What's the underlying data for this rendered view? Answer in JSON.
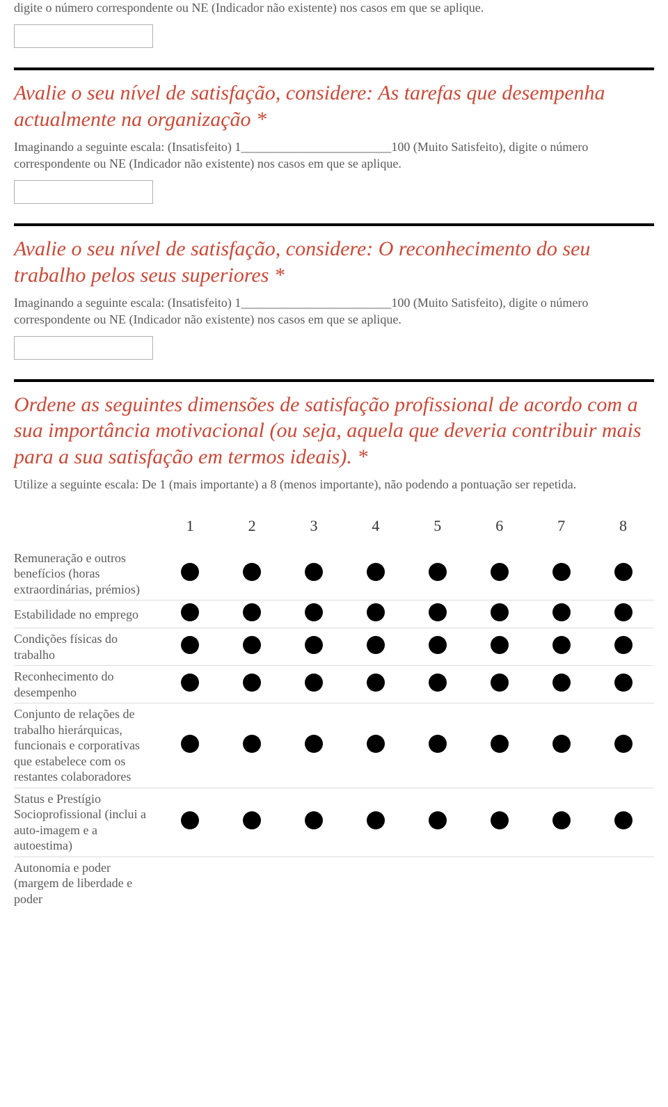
{
  "colors": {
    "title": "#c94a38",
    "helper": "#5a5a5a",
    "divider": "#000000",
    "row_border": "#dcdcdc",
    "radio_fill": "#000000",
    "background": "#ffffff"
  },
  "intro": {
    "helper": "digite o número correspondente ou NE (Indicador não existente) nos casos em que se aplique."
  },
  "q1": {
    "title": "Avalie o seu nível de satisfação, considere: As tarefas que desempenha actualmente na organização *",
    "helper": "Imaginando a seguinte escala: (Insatisfeito) 1________________________100 (Muito Satisfeito), digite o número correspondente ou NE (Indicador não existente) nos casos em que se aplique."
  },
  "q2": {
    "title": "Avalie o seu nível de satisfação, considere: O reconhecimento do seu trabalho pelos seus superiores *",
    "helper": "Imaginando a seguinte escala: (Insatisfeito) 1________________________100 (Muito Satisfeito), digite o número correspondente ou NE (Indicador não existente) nos casos em que se aplique."
  },
  "q3": {
    "title": "Ordene as seguintes dimensões de satisfação profissional de acordo com a sua importância motivacional (ou seja, aquela que deveria contribuir mais para a sua satisfação em termos ideais). *",
    "helper": "Utilize a seguinte escala: De 1 (mais importante) a 8 (menos importante), não podendo a pontuação ser repetida.",
    "columns": [
      "1",
      "2",
      "3",
      "4",
      "5",
      "6",
      "7",
      "8"
    ],
    "rows": [
      {
        "label": "Remuneração e outros benefícios (horas extraordinárias, prémios)"
      },
      {
        "label": "Estabilidade no emprego"
      },
      {
        "label": "Condições físicas do trabalho"
      },
      {
        "label": "Reconhecimento do desempenho"
      },
      {
        "label": "Conjunto de relações de trabalho hierárquicas, funcionais e corporativas que estabelece com os restantes colaboradores"
      },
      {
        "label": "Status e Prestígio Socioprofissional (inclui a auto-imagem e a autoestima)"
      },
      {
        "label": "Autonomia e poder (margem de liberdade e poder"
      }
    ]
  }
}
